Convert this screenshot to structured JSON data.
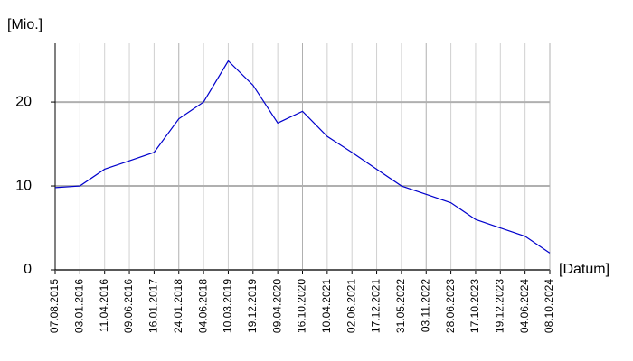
{
  "chart_data": {
    "type": "line",
    "y_label": "[Mio.]",
    "x_label": "[Datum]",
    "categories": [
      "07.08.2015",
      "03.01.2016",
      "11.04.2016",
      "09.06.2016",
      "16.01.2017",
      "24.01.2018",
      "04.06.2018",
      "10.03.2019",
      "19.12.2019",
      "09.04.2020",
      "16.10.2020",
      "10.04.2021",
      "02.06.2021",
      "17.12.2021",
      "31.05.2022",
      "03.11.2022",
      "28.06.2023",
      "17.10.2023",
      "19.12.2023",
      "04.06.2024",
      "08.10.2024"
    ],
    "series": [
      {
        "color": "#0000cc",
        "values": [
          9.8,
          10,
          12,
          13,
          14,
          18,
          20,
          24.9,
          22,
          17.5,
          18.9,
          15.9,
          14,
          12,
          10,
          9,
          8,
          6,
          5,
          4,
          2
        ]
      }
    ],
    "ylim": [
      0,
      27
    ],
    "yticks": [
      0,
      10,
      20
    ],
    "grid": true
  }
}
